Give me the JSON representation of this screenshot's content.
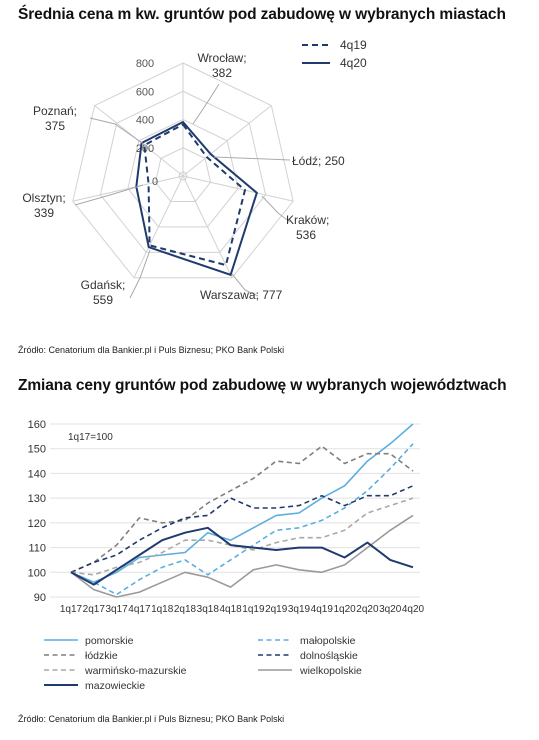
{
  "chart_data": [
    {
      "type": "radar",
      "title": "Średnia cena m kw. gruntów pod zabudowę w wybranych miastach",
      "source": "Źródło: Cenatorium dla Bankier.pl i Puls Biznesu; PKO Bank Polski",
      "axes": [
        {
          "city": "Wrocław",
          "value_label": "382"
        },
        {
          "city": "Łódź",
          "value_label": "250"
        },
        {
          "city": "Kraków",
          "value_label": "536"
        },
        {
          "city": "Warszawa",
          "value_label": "777"
        },
        {
          "city": "Gdańsk",
          "value_label": "559"
        },
        {
          "city": "Olsztyn",
          "value_label": "339"
        },
        {
          "city": "Poznań",
          "value_label": "375"
        }
      ],
      "radial_ticks": [
        "0",
        "200",
        "400",
        "600",
        "800"
      ],
      "rmax": 800,
      "series": [
        {
          "name": "4q19",
          "style": "dashed",
          "values": [
            365,
            215,
            450,
            700,
            545,
            250,
            350
          ]
        },
        {
          "name": "4q20",
          "style": "solid",
          "values": [
            382,
            250,
            536,
            777,
            559,
            339,
            375
          ]
        }
      ],
      "color": "#1f3b6e",
      "grid_color": "#d2d2d2"
    },
    {
      "type": "line",
      "title": "Zmiana ceny gruntów pod zabudowę w wybranych województwach",
      "source": "Źródło: Cenatorium dla Bankier.pl i Puls Biznesu; PKO Bank Polski",
      "annotation": "1q17=100",
      "categories": [
        "1q17",
        "2q17",
        "3q17",
        "4q17",
        "1q18",
        "2q18",
        "3q18",
        "4q18",
        "1q19",
        "2q19",
        "3q19",
        "4q19",
        "1q20",
        "2q20",
        "3q20",
        "4q20"
      ],
      "yticks": [
        "90",
        "100",
        "110",
        "120",
        "130",
        "140",
        "150",
        "160"
      ],
      "ylim": [
        90,
        160
      ],
      "grid": true,
      "series": [
        {
          "name": "pomorskie",
          "color": "#5aaee0",
          "dash": "solid",
          "width": 1.6,
          "values": [
            100,
            96,
            100,
            106,
            107,
            108,
            116,
            113,
            118,
            123,
            124,
            130,
            135,
            145,
            152,
            160
          ]
        },
        {
          "name": "małopolskie",
          "color": "#5aaee0",
          "dash": "dashed",
          "width": 1.6,
          "values": [
            100,
            96,
            91,
            97,
            102,
            105,
            99,
            105,
            111,
            117,
            118,
            121,
            126,
            133,
            142,
            152
          ]
        },
        {
          "name": "łódzkie",
          "color": "#7f7f7f",
          "dash": "dashed",
          "width": 1.6,
          "values": [
            100,
            104,
            111,
            122,
            120,
            121,
            128,
            133,
            138,
            145,
            144,
            151,
            144,
            148,
            148,
            141
          ]
        },
        {
          "name": "dolnośląskie",
          "color": "#1f3b6e",
          "dash": "dashed",
          "width": 1.6,
          "values": [
            100,
            104,
            107,
            113,
            118,
            122,
            123,
            130,
            126,
            126,
            127,
            131,
            127,
            131,
            131,
            135
          ]
        },
        {
          "name": "warmińsko-mazurskie",
          "color": "#a9a9a9",
          "dash": "dashed",
          "width": 1.6,
          "values": [
            100,
            99,
            102,
            104,
            108,
            113,
            113,
            111,
            109,
            112,
            114,
            114,
            117,
            124,
            127,
            130
          ]
        },
        {
          "name": "wielkopolskie",
          "color": "#9a9a9a",
          "dash": "solid",
          "width": 1.6,
          "values": [
            100,
            93,
            90,
            92,
            96,
            100,
            98,
            94,
            101,
            103,
            101,
            100,
            103,
            110,
            117,
            123
          ]
        },
        {
          "name": "mazowieckie",
          "color": "#1f3b6e",
          "dash": "solid",
          "width": 2.0,
          "values": [
            100,
            95,
            101,
            107,
            113,
            116,
            118,
            111,
            110,
            109,
            110,
            110,
            106,
            112,
            105,
            102
          ]
        }
      ]
    }
  ]
}
